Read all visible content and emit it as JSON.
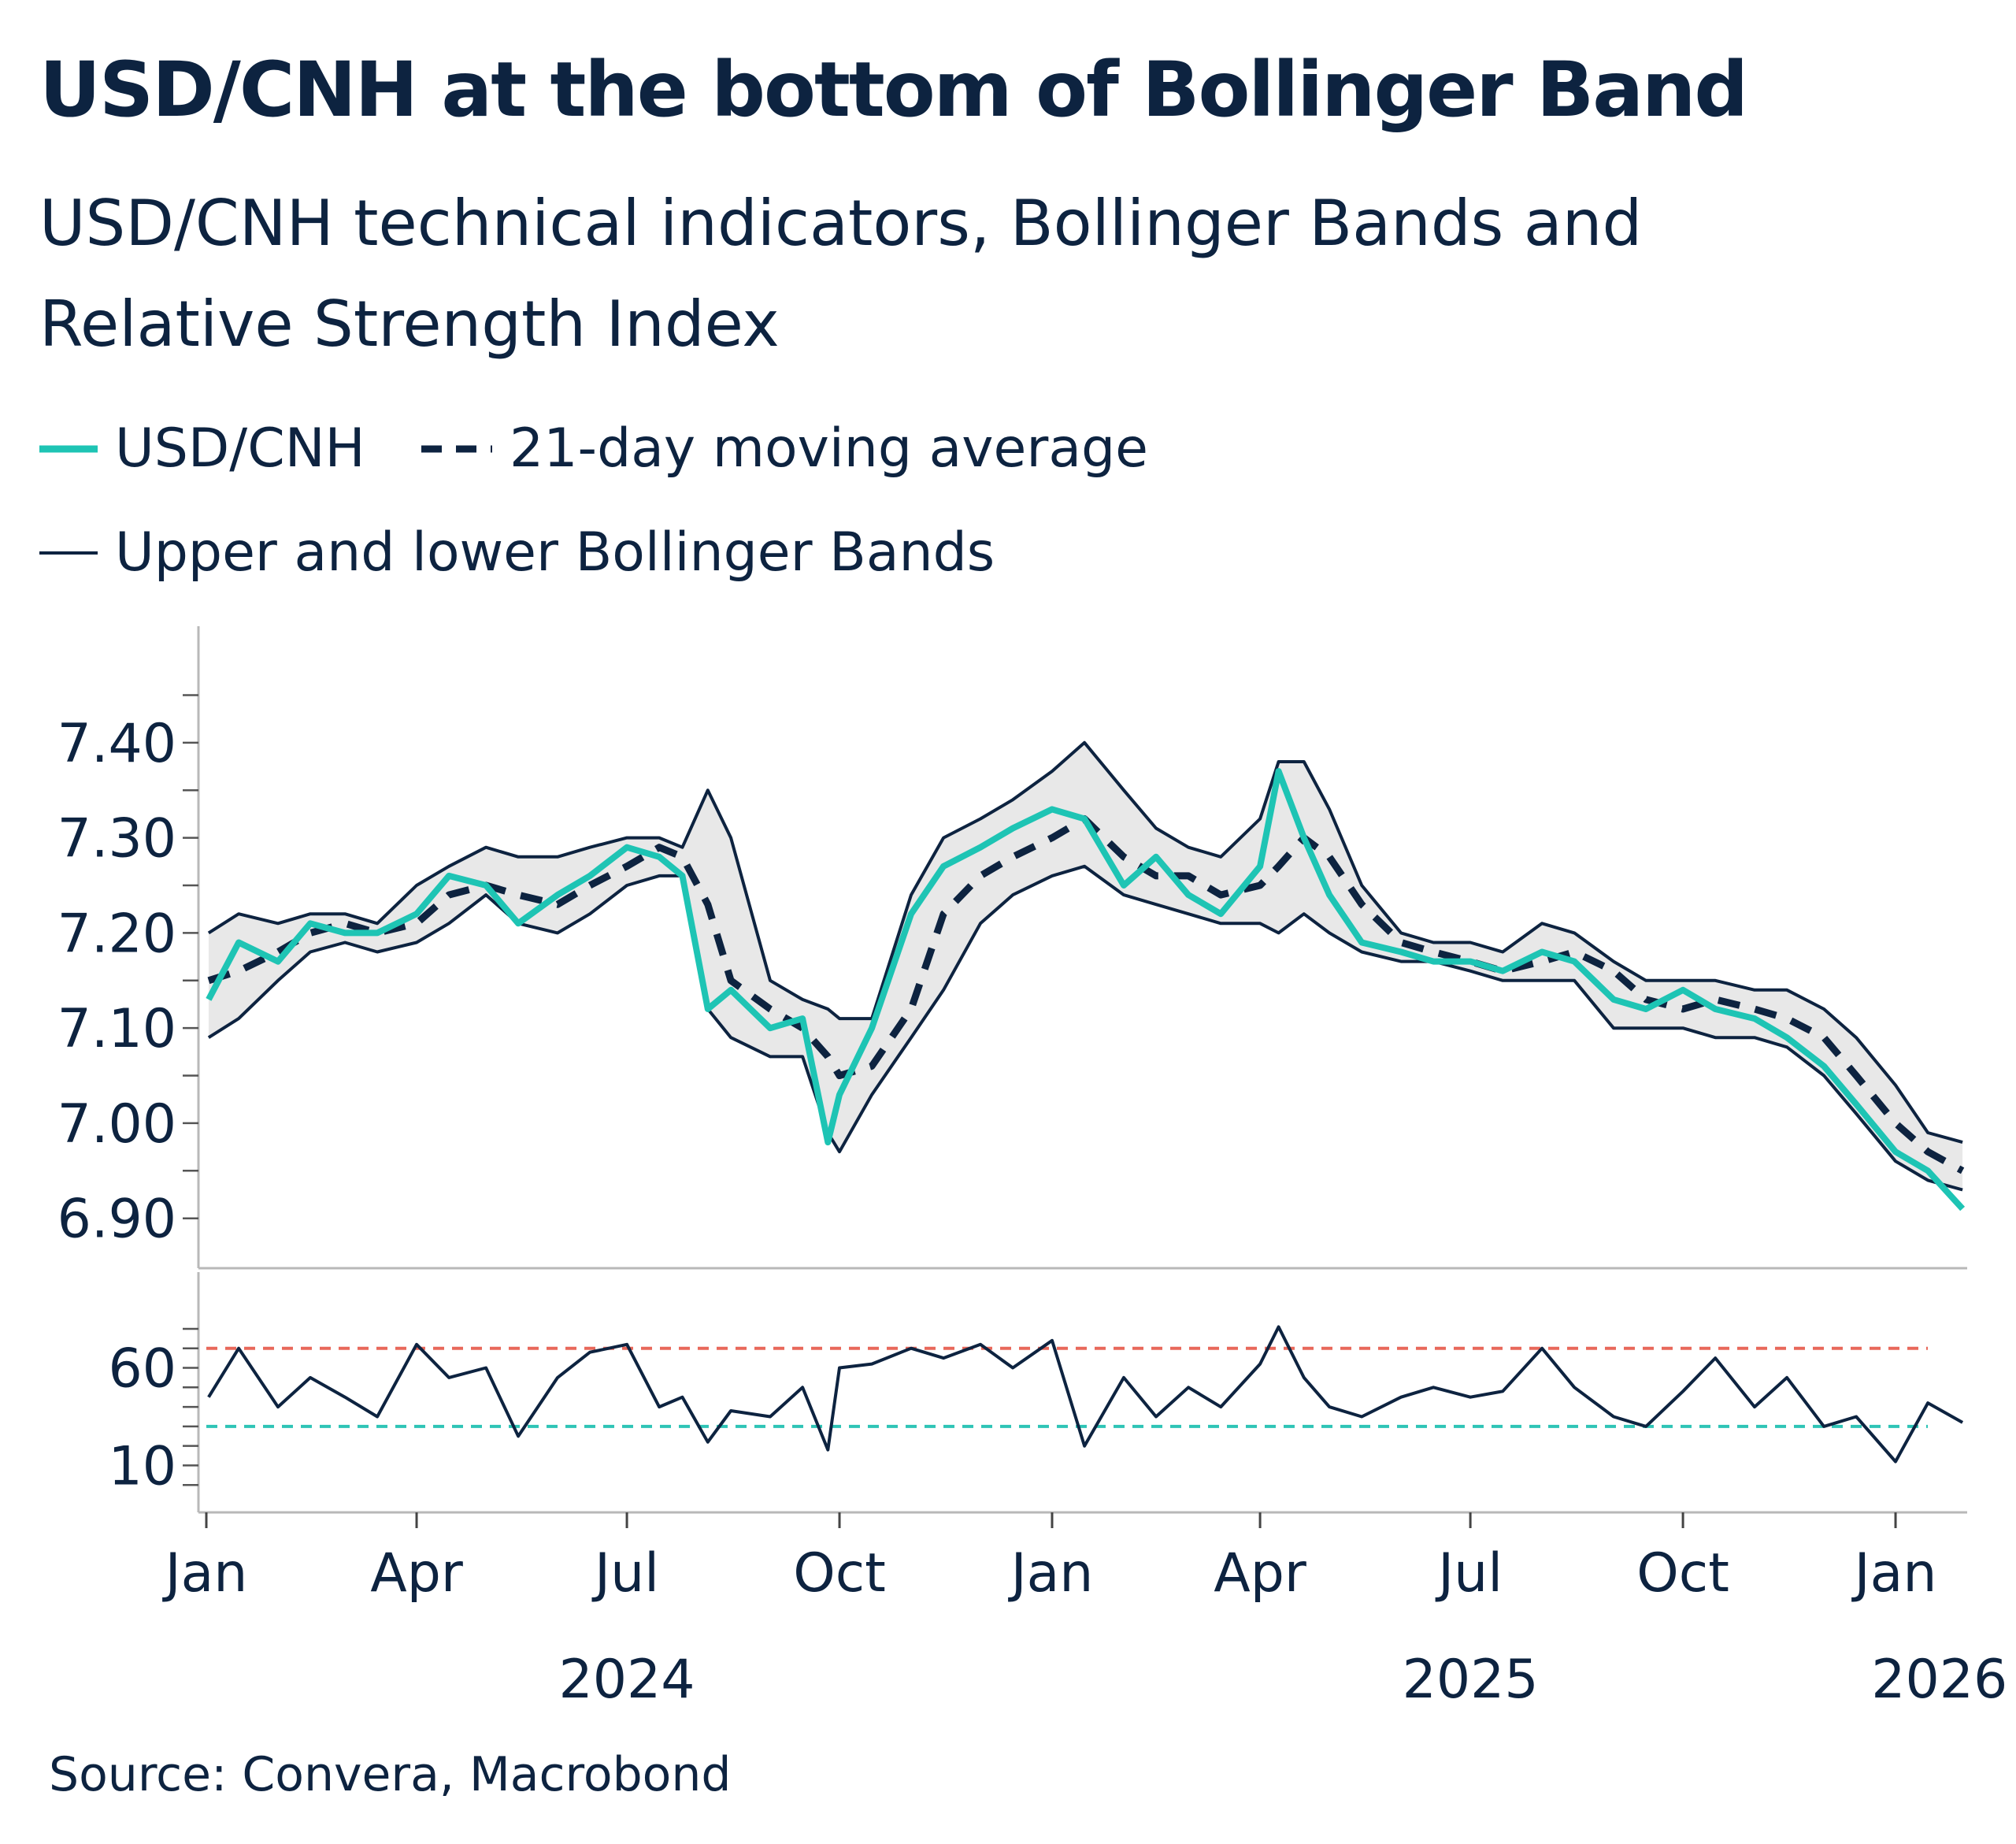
{
  "title": "USD/CNH at the bottom of Bollinger Band",
  "subtitle": "USD/CNH technical indicators, Bollinger Bands and Relative Strength Index",
  "source": "Source: Convera, Macrobond",
  "legend": {
    "price": "USD/CNH",
    "ma": "21-day moving average",
    "bands": "Upper and lower Bollinger Bands"
  },
  "colors": {
    "price": "#1ec4b4",
    "ma": "#0d2340",
    "bands": "#0d2340",
    "band_fill": "#e8e8e8",
    "overbought": "#e8685a",
    "oversold": "#2ec4b6",
    "axis": "#b8b8b8",
    "text": "#0d2340"
  },
  "chart_data": [
    {
      "type": "line",
      "panel": "Bollinger Bands",
      "ylim": [
        6.86,
        7.51
      ],
      "yticks": [
        "6.90",
        "7.00",
        "7.10",
        "7.20",
        "7.30",
        "7.40"
      ],
      "yticks_values": [
        6.9,
        7.0,
        7.1,
        7.2,
        7.3,
        7.4
      ],
      "x": [
        "2024-01-02",
        "2024-01-15",
        "2024-02-01",
        "2024-02-15",
        "2024-03-01",
        "2024-03-15",
        "2024-04-01",
        "2024-04-15",
        "2024-05-01",
        "2024-05-15",
        "2024-06-01",
        "2024-06-15",
        "2024-07-01",
        "2024-07-15",
        "2024-07-25",
        "2024-08-05",
        "2024-08-15",
        "2024-09-01",
        "2024-09-15",
        "2024-09-26",
        "2024-10-01",
        "2024-10-15",
        "2024-11-01",
        "2024-11-15",
        "2024-12-01",
        "2024-12-15",
        "2025-01-01",
        "2025-01-15",
        "2025-02-01",
        "2025-02-15",
        "2025-03-01",
        "2025-03-15",
        "2025-04-01",
        "2025-04-09",
        "2025-04-20",
        "2025-05-01",
        "2025-05-15",
        "2025-06-01",
        "2025-06-15",
        "2025-07-01",
        "2025-07-15",
        "2025-08-01",
        "2025-08-15",
        "2025-09-01",
        "2025-09-15",
        "2025-10-01",
        "2025-10-15",
        "2025-11-01",
        "2025-11-15",
        "2025-12-01",
        "2025-12-15",
        "2026-01-01",
        "2026-01-15",
        "2026-01-30"
      ],
      "series": [
        {
          "name": "USD/CNH",
          "values": [
            7.13,
            7.19,
            7.17,
            7.21,
            7.2,
            7.2,
            7.22,
            7.26,
            7.25,
            7.21,
            7.24,
            7.26,
            7.29,
            7.28,
            7.26,
            7.12,
            7.14,
            7.1,
            7.11,
            6.98,
            7.03,
            7.1,
            7.22,
            7.27,
            7.29,
            7.31,
            7.33,
            7.32,
            7.25,
            7.28,
            7.24,
            7.22,
            7.27,
            7.37,
            7.3,
            7.24,
            7.19,
            7.18,
            7.17,
            7.17,
            7.16,
            7.18,
            7.17,
            7.13,
            7.12,
            7.14,
            7.12,
            7.11,
            7.09,
            7.06,
            7.02,
            6.97,
            6.95,
            6.91
          ]
        },
        {
          "name": "21-day moving average",
          "values": [
            7.15,
            7.16,
            7.18,
            7.2,
            7.21,
            7.2,
            7.21,
            7.24,
            7.25,
            7.24,
            7.23,
            7.25,
            7.27,
            7.29,
            7.28,
            7.23,
            7.15,
            7.12,
            7.1,
            7.07,
            7.05,
            7.06,
            7.12,
            7.22,
            7.26,
            7.28,
            7.3,
            7.32,
            7.28,
            7.26,
            7.26,
            7.24,
            7.25,
            7.27,
            7.3,
            7.28,
            7.23,
            7.19,
            7.18,
            7.17,
            7.16,
            7.17,
            7.18,
            7.16,
            7.13,
            7.12,
            7.13,
            7.12,
            7.11,
            7.09,
            7.05,
            7.0,
            6.97,
            6.95
          ]
        },
        {
          "name": "Upper Bollinger Band",
          "values": [
            7.2,
            7.22,
            7.21,
            7.22,
            7.22,
            7.21,
            7.25,
            7.27,
            7.29,
            7.28,
            7.28,
            7.29,
            7.3,
            7.3,
            7.29,
            7.35,
            7.3,
            7.15,
            7.13,
            7.12,
            7.11,
            7.11,
            7.24,
            7.3,
            7.32,
            7.34,
            7.37,
            7.4,
            7.35,
            7.31,
            7.29,
            7.28,
            7.32,
            7.38,
            7.38,
            7.33,
            7.25,
            7.2,
            7.19,
            7.19,
            7.18,
            7.21,
            7.2,
            7.17,
            7.15,
            7.15,
            7.15,
            7.14,
            7.14,
            7.12,
            7.09,
            7.04,
            6.99,
            6.98
          ]
        },
        {
          "name": "Lower Bollinger Band",
          "values": [
            7.09,
            7.11,
            7.15,
            7.18,
            7.19,
            7.18,
            7.19,
            7.21,
            7.24,
            7.21,
            7.2,
            7.22,
            7.25,
            7.26,
            7.26,
            7.12,
            7.09,
            7.07,
            7.07,
            6.99,
            6.97,
            7.03,
            7.09,
            7.14,
            7.21,
            7.24,
            7.26,
            7.27,
            7.24,
            7.23,
            7.22,
            7.21,
            7.21,
            7.2,
            7.22,
            7.2,
            7.18,
            7.17,
            7.17,
            7.16,
            7.15,
            7.15,
            7.15,
            7.1,
            7.1,
            7.1,
            7.09,
            7.09,
            7.08,
            7.05,
            7.01,
            6.96,
            6.94,
            6.93
          ]
        }
      ]
    },
    {
      "type": "line",
      "panel": "Relative Strength Index",
      "ylim": [
        -10,
        105
      ],
      "yticks": [
        "10",
        "60"
      ],
      "yticks_values": [
        10,
        60
      ],
      "reference_lines": [
        70,
        30
      ],
      "x": [
        "2024-01-02",
        "2024-01-15",
        "2024-02-01",
        "2024-02-15",
        "2024-03-01",
        "2024-03-15",
        "2024-04-01",
        "2024-04-15",
        "2024-05-01",
        "2024-05-15",
        "2024-06-01",
        "2024-06-15",
        "2024-07-01",
        "2024-07-15",
        "2024-07-25",
        "2024-08-05",
        "2024-08-15",
        "2024-09-01",
        "2024-09-15",
        "2024-09-26",
        "2024-10-01",
        "2024-10-15",
        "2024-11-01",
        "2024-11-15",
        "2024-12-01",
        "2024-12-15",
        "2025-01-01",
        "2025-01-15",
        "2025-02-01",
        "2025-02-15",
        "2025-03-01",
        "2025-03-15",
        "2025-04-01",
        "2025-04-09",
        "2025-04-20",
        "2025-05-01",
        "2025-05-15",
        "2025-06-01",
        "2025-06-15",
        "2025-07-01",
        "2025-07-15",
        "2025-08-01",
        "2025-08-15",
        "2025-09-01",
        "2025-09-15",
        "2025-10-01",
        "2025-10-15",
        "2025-11-01",
        "2025-11-15",
        "2025-12-01",
        "2025-12-15",
        "2026-01-01",
        "2026-01-15",
        "2026-01-30"
      ],
      "series": [
        {
          "name": "RSI",
          "values": [
            45,
            70,
            40,
            55,
            45,
            35,
            72,
            55,
            60,
            25,
            55,
            68,
            72,
            40,
            45,
            22,
            38,
            35,
            50,
            18,
            60,
            62,
            70,
            65,
            72,
            60,
            74,
            20,
            55,
            35,
            50,
            40,
            62,
            81,
            55,
            40,
            35,
            45,
            50,
            45,
            48,
            70,
            50,
            35,
            30,
            48,
            65,
            40,
            55,
            30,
            35,
            12,
            42,
            32
          ]
        }
      ]
    }
  ],
  "xaxis": {
    "months": [
      "Jan",
      "Apr",
      "Jul",
      "Oct",
      "Jan",
      "Apr",
      "Jul",
      "Oct",
      "Jan"
    ],
    "years": [
      "2024",
      "2025",
      "2026"
    ]
  }
}
